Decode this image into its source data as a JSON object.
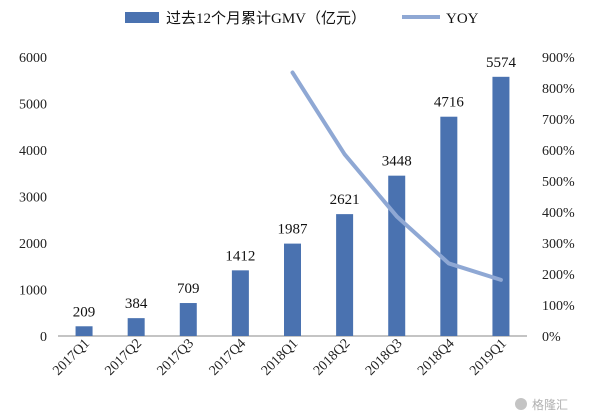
{
  "chart_data": {
    "type": "bar",
    "categories": [
      "2017Q1",
      "2017Q2",
      "2017Q3",
      "2017Q4",
      "2018Q1",
      "2018Q2",
      "2018Q3",
      "2018Q4",
      "2019Q1"
    ],
    "series": [
      {
        "name": "过去12个月累计GMV（亿元）",
        "type": "bar",
        "axis": "left",
        "color": "#4a72b0",
        "values": [
          209,
          384,
          709,
          1412,
          1987,
          2621,
          3448,
          4716,
          5574
        ],
        "data_labels": [
          "209",
          "384",
          "709",
          "1412",
          "1987",
          "2621",
          "3448",
          "4716",
          "5574"
        ]
      },
      {
        "name": "YOY",
        "type": "line",
        "axis": "right",
        "color": "#8fa8d4",
        "values": [
          null,
          null,
          null,
          null,
          850,
          586,
          386,
          234,
          181
        ]
      }
    ],
    "y_left": {
      "ylim": [
        0,
        6000
      ],
      "ticks": [
        "0",
        "1000",
        "2000",
        "3000",
        "4000",
        "5000",
        "6000"
      ]
    },
    "y_right": {
      "ylim": [
        0,
        900
      ],
      "ticks": [
        "0%",
        "100%",
        "200%",
        "300%",
        "400%",
        "500%",
        "600%",
        "700%",
        "800%",
        "900%"
      ]
    },
    "grid": false,
    "legend_position": "top"
  },
  "watermark": "格隆汇",
  "watermark_icon": "wechat-icon"
}
